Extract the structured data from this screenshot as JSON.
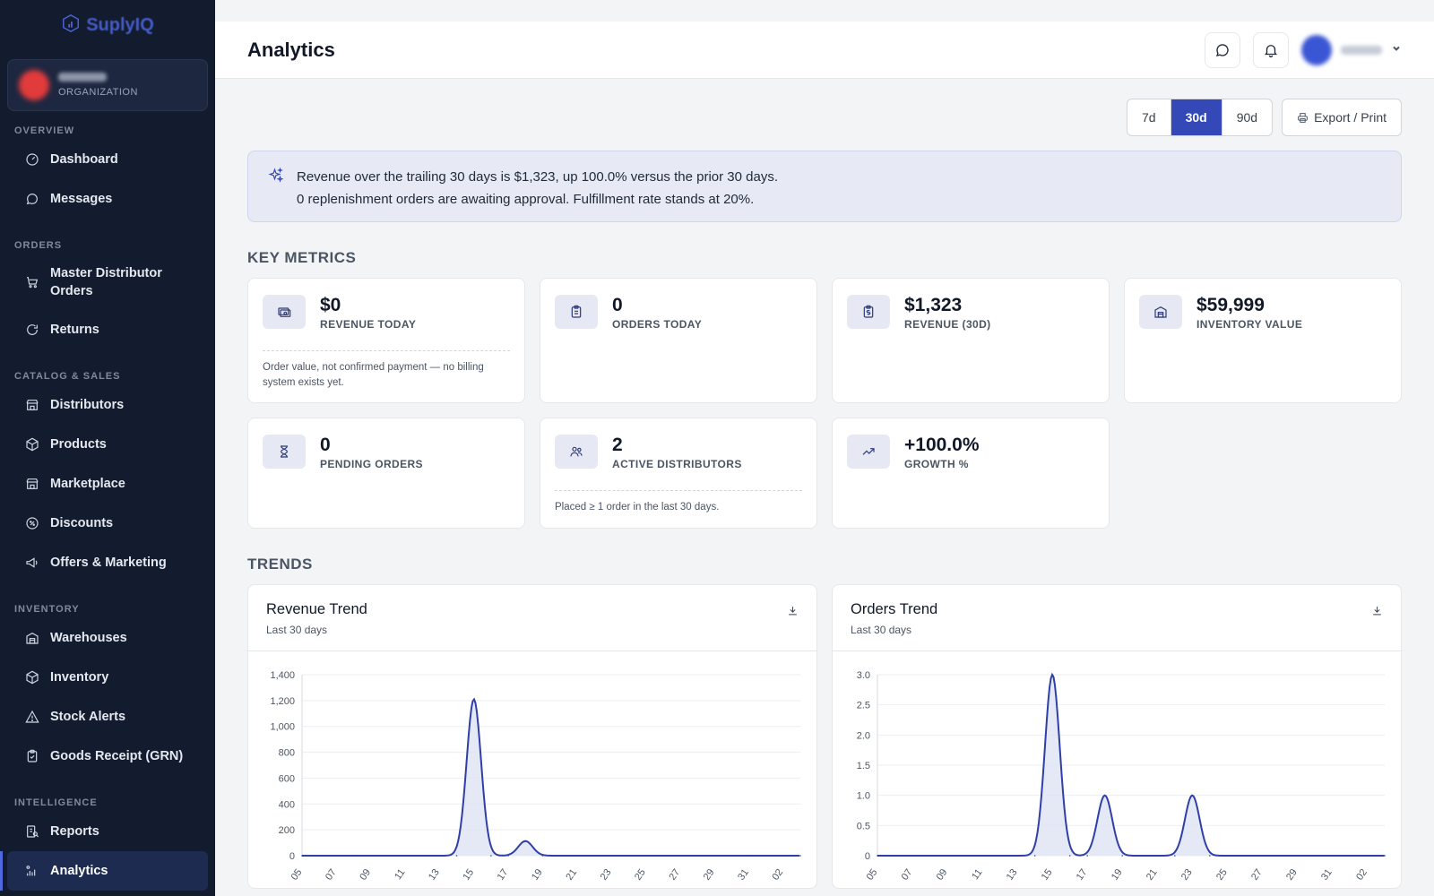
{
  "brand": {
    "name": "SuplyIQ"
  },
  "org": {
    "label": "ORGANIZATION"
  },
  "sidebar": {
    "sections": [
      {
        "title": "OVERVIEW",
        "items": [
          {
            "label": "Dashboard",
            "icon": "gauge-icon"
          },
          {
            "label": "Messages",
            "icon": "chat-icon"
          }
        ]
      },
      {
        "title": "ORDERS",
        "items": [
          {
            "label": "Master Distributor Orders",
            "icon": "cart-icon"
          },
          {
            "label": "Returns",
            "icon": "return-icon"
          }
        ]
      },
      {
        "title": "CATALOG & SALES",
        "items": [
          {
            "label": "Distributors",
            "icon": "store-icon"
          },
          {
            "label": "Products",
            "icon": "box-icon"
          },
          {
            "label": "Marketplace",
            "icon": "store-icon"
          },
          {
            "label": "Discounts",
            "icon": "discount-icon"
          },
          {
            "label": "Offers & Marketing",
            "icon": "megaphone-icon"
          }
        ]
      },
      {
        "title": "INVENTORY",
        "items": [
          {
            "label": "Warehouses",
            "icon": "warehouse-icon"
          },
          {
            "label": "Inventory",
            "icon": "box-icon"
          },
          {
            "label": "Stock Alerts",
            "icon": "alert-icon"
          },
          {
            "label": "Goods Receipt (GRN)",
            "icon": "clipboard-check-icon"
          }
        ]
      },
      {
        "title": "INTELLIGENCE",
        "items": [
          {
            "label": "Reports",
            "icon": "report-icon"
          },
          {
            "label": "Analytics",
            "icon": "analytics-icon",
            "active": true
          }
        ]
      }
    ]
  },
  "header": {
    "title": "Analytics"
  },
  "toolbar": {
    "ranges": [
      "7d",
      "30d",
      "90d"
    ],
    "active_range": "30d",
    "export_label": "Export / Print"
  },
  "insight": {
    "line1": "Revenue over the trailing 30 days is $1,323, up 100.0% versus the prior 30 days.",
    "line2": "0 replenishment orders are awaiting approval. Fulfillment rate stands at 20%."
  },
  "key_metrics": {
    "title": "KEY METRICS",
    "cards": [
      {
        "value": "$0",
        "label": "REVENUE TODAY",
        "note": "Order value, not confirmed payment — no billing system exists yet.",
        "icon": "cash-icon"
      },
      {
        "value": "0",
        "label": "ORDERS TODAY",
        "note": "",
        "icon": "clipboard-icon"
      },
      {
        "value": "$1,323",
        "label": "REVENUE (30D)",
        "note": "",
        "icon": "receipt-dollar-icon"
      },
      {
        "value": "$59,999",
        "label": "INVENTORY VALUE",
        "note": "",
        "icon": "warehouse-icon"
      },
      {
        "value": "0",
        "label": "PENDING ORDERS",
        "note": "",
        "icon": "hourglass-icon"
      },
      {
        "value": "2",
        "label": "ACTIVE DISTRIBUTORS",
        "note": "Placed ≥ 1 order in the last 30 days.",
        "icon": "users-icon"
      },
      {
        "value": "+100.0%",
        "label": "GROWTH %",
        "note": "",
        "icon": "trend-up-icon"
      }
    ]
  },
  "trends": {
    "title": "TRENDS"
  },
  "chart_data": [
    {
      "type": "area",
      "title": "Revenue Trend",
      "subtitle": "Last 30 days",
      "x": [
        "05",
        "06",
        "07",
        "08",
        "09",
        "10",
        "11",
        "12",
        "13",
        "14",
        "15",
        "16",
        "17",
        "18",
        "19",
        "20",
        "21",
        "22",
        "23",
        "24",
        "25",
        "26",
        "27",
        "28",
        "29",
        "30",
        "31",
        "01",
        "02",
        "03"
      ],
      "x_tick_labels": [
        "05",
        "07",
        "09",
        "11",
        "13",
        "15",
        "17",
        "19",
        "21",
        "23",
        "25",
        "27",
        "29",
        "31",
        "02"
      ],
      "values": [
        0,
        0,
        0,
        0,
        0,
        0,
        0,
        0,
        0,
        0,
        1210,
        0,
        0,
        113,
        0,
        0,
        0,
        0,
        0,
        0,
        0,
        0,
        0,
        0,
        0,
        0,
        0,
        0,
        0,
        0
      ],
      "ylim": [
        0,
        1400
      ],
      "yticks": [
        0,
        200,
        400,
        600,
        800,
        1000,
        1200,
        1400
      ],
      "ytick_labels": [
        "0",
        "200",
        "400",
        "600",
        "800",
        "1,000",
        "1,200",
        "1,400"
      ],
      "grid": true,
      "color": "#2f3fa8"
    },
    {
      "type": "area",
      "title": "Orders Trend",
      "subtitle": "Last 30 days",
      "x": [
        "05",
        "06",
        "07",
        "08",
        "09",
        "10",
        "11",
        "12",
        "13",
        "14",
        "15",
        "16",
        "17",
        "18",
        "19",
        "20",
        "21",
        "22",
        "23",
        "24",
        "25",
        "26",
        "27",
        "28",
        "29",
        "30",
        "31",
        "01",
        "02",
        "03"
      ],
      "x_tick_labels": [
        "05",
        "07",
        "09",
        "11",
        "13",
        "15",
        "17",
        "19",
        "21",
        "23",
        "25",
        "27",
        "29",
        "31",
        "02"
      ],
      "values": [
        0,
        0,
        0,
        0,
        0,
        0,
        0,
        0,
        0,
        0,
        3,
        0,
        0,
        1,
        0,
        0,
        0,
        0,
        1,
        0,
        0,
        0,
        0,
        0,
        0,
        0,
        0,
        0,
        0,
        0
      ],
      "ylim": [
        0,
        3
      ],
      "yticks": [
        0,
        0.5,
        1,
        1.5,
        2,
        2.5,
        3
      ],
      "ytick_labels": [
        "0",
        "0.5",
        "1.0",
        "1.5",
        "2.0",
        "2.5",
        "3.0"
      ],
      "grid": true,
      "color": "#2f3fa8"
    }
  ]
}
